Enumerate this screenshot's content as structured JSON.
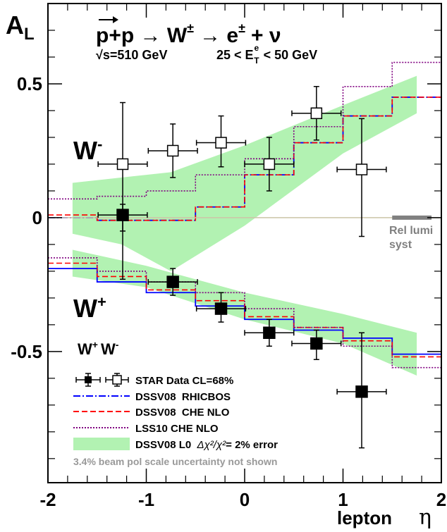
{
  "chart_data": {
    "type": "scatter",
    "ylabel": "A_L",
    "xlabel": "lepton η",
    "ylabel_main": "A",
    "ylabel_sub": "L",
    "xlabel_text": "lepton",
    "xlabel_symbol": "η",
    "title_reaction": "p+p → W± → e± + ν",
    "title_p": "p",
    "title_rest": "+p → W",
    "title_pm": "±",
    "title_arrow2": "→ e",
    "title_pm2": "±",
    "title_nu": "+ ν",
    "subtitle_sqrt": "√s=510 GeV",
    "subtitle_cut": "25 < E_T^e < 50 GeV",
    "cut_left": "25 < E",
    "cut_sup": "e",
    "cut_sub": "T",
    "cut_right": "< 50 GeV",
    "xlim": [
      -2,
      2
    ],
    "ylim": [
      -0.99,
      0.8
    ],
    "x_ticks": [
      -2,
      -1,
      0,
      1,
      2
    ],
    "x_tick_labels": [
      "-2",
      "-1",
      "0",
      "1",
      "2"
    ],
    "y_ticks": [
      -0.5,
      0,
      0.5
    ],
    "y_tick_labels": [
      "-0.5",
      "0",
      "0.5"
    ],
    "grid": false,
    "legend_position": "bottom-left",
    "annotations": {
      "w_minus": "W-",
      "w_minus_base": "W",
      "w_minus_sup": "-",
      "w_plus": "W+",
      "w_plus_base": "W",
      "w_plus_sup": "+",
      "legend_header": "W+ W-",
      "rel_lumi_1": "Rel lumi",
      "rel_lumi_2": "syst",
      "beam_pol_note": "3.4% beam pol scale uncertainty not shown"
    },
    "legend": [
      {
        "label": "STAR Data CL=68%",
        "kind": "markers"
      },
      {
        "label": "DSSV08  RHICBOS",
        "kind": "line",
        "color": "#0000ff",
        "dash": "dashdot"
      },
      {
        "label": "DSSV08  CHE NLO",
        "kind": "line",
        "color": "#ff0000",
        "dash": "dashed"
      },
      {
        "label": "LSS10 CHE NLO",
        "kind": "line",
        "color": "#800080",
        "dash": "dotted"
      },
      {
        "label": "DSSV08 L0  Δχ²/χ²= 2% error",
        "kind": "band",
        "color": "#b2f2b2"
      }
    ],
    "legend_band_prefix": "DSSV08 L0  ",
    "legend_band_suffix": "= 2% error",
    "legend_band_chi": "Δχ²/χ²",
    "series": [
      {
        "name": "STAR Data W+",
        "marker": "filled-square",
        "points": [
          {
            "x": -1.24,
            "y": 0.01,
            "xerr": 0.25,
            "ylo": -0.05,
            "yhi": 0.05
          },
          {
            "x": -0.73,
            "y": -0.24,
            "xerr": 0.25,
            "ylo": -0.29,
            "yhi": -0.19
          },
          {
            "x": -0.24,
            "y": -0.34,
            "xerr": 0.25,
            "ylo": -0.39,
            "yhi": -0.28
          },
          {
            "x": 0.25,
            "y": -0.43,
            "xerr": 0.25,
            "ylo": -0.48,
            "yhi": -0.38
          },
          {
            "x": 0.73,
            "y": -0.47,
            "xerr": 0.25,
            "ylo": -0.53,
            "yhi": -0.42
          },
          {
            "x": 1.19,
            "y": -0.65,
            "xerr": 0.25,
            "ylo": -0.86,
            "yhi": -0.43
          }
        ]
      },
      {
        "name": "STAR Data W-",
        "marker": "open-square",
        "points": [
          {
            "x": -1.24,
            "y": 0.2,
            "xerr": 0.25,
            "ylo": -0.23,
            "yhi": 0.43
          },
          {
            "x": -0.73,
            "y": 0.25,
            "xerr": 0.25,
            "ylo": 0.15,
            "yhi": 0.35
          },
          {
            "x": -0.24,
            "y": 0.28,
            "xerr": 0.25,
            "ylo": 0.19,
            "yhi": 0.38
          },
          {
            "x": 0.25,
            "y": 0.2,
            "xerr": 0.25,
            "ylo": 0.1,
            "yhi": 0.3
          },
          {
            "x": 0.73,
            "y": 0.39,
            "xerr": 0.25,
            "ylo": 0.29,
            "yhi": 0.49
          },
          {
            "x": 1.19,
            "y": 0.18,
            "xerr": 0.25,
            "ylo": -0.07,
            "yhi": 0.37
          }
        ]
      },
      {
        "name": "DSSV08  RHICBOS",
        "style": "line",
        "color": "#0000ff",
        "curves": [
          {
            "edges": [
              -2,
              -1.5,
              -1.0,
              -0.5,
              0,
              0.5,
              1.0,
              1.5,
              2.0
            ],
            "values": [
              -0.19,
              -0.24,
              -0.28,
              -0.33,
              -0.38,
              -0.42,
              -0.45,
              -0.51
            ]
          },
          {
            "edges": [
              -2,
              -1.5,
              -1.0,
              -0.5,
              0,
              0.5,
              1.0,
              1.5,
              2.0
            ],
            "values": [
              0.0,
              -0.01,
              -0.01,
              0.04,
              0.16,
              0.28,
              0.38,
              0.45
            ]
          }
        ]
      },
      {
        "name": "DSSV08  CHE NLO",
        "style": "line",
        "color": "#ff0000",
        "curves": [
          {
            "edges": [
              -2,
              -1.5,
              -1.0,
              -0.5,
              0,
              0.5,
              1.0,
              1.5,
              2.0
            ],
            "values": [
              -0.17,
              -0.22,
              -0.27,
              -0.31,
              -0.37,
              -0.41,
              -0.46,
              -0.52
            ]
          },
          {
            "edges": [
              -2,
              -1.5,
              -1.0,
              -0.5,
              0,
              0.5,
              1.0,
              1.5,
              2.0
            ],
            "values": [
              0.01,
              -0.01,
              -0.01,
              0.04,
              0.16,
              0.28,
              0.38,
              0.45
            ]
          }
        ]
      },
      {
        "name": "LSS10 CHE NLO",
        "style": "line",
        "color": "#800080",
        "curves": [
          {
            "edges": [
              -2,
              -1.5,
              -1.0,
              -0.5,
              0,
              0.5,
              1.0,
              1.5,
              2.0
            ],
            "values": [
              -0.15,
              -0.2,
              -0.24,
              -0.28,
              -0.34,
              -0.41,
              -0.48,
              -0.56
            ]
          },
          {
            "edges": [
              -2,
              -1.5,
              -1.0,
              -0.5,
              0,
              0.5,
              1.0,
              1.5,
              2.0
            ],
            "values": [
              0.07,
              0.08,
              0.1,
              0.16,
              0.22,
              0.34,
              0.49,
              0.58
            ]
          }
        ]
      },
      {
        "name": "DSSV08 L0 Δχ²/χ²= 2% error",
        "style": "band",
        "color": "#b2f2b2",
        "bands": [
          {
            "x": [
              -1.75,
              -1.0,
              0.0,
              1.0,
              1.75
            ],
            "lower": [
              -0.22,
              -0.26,
              -0.38,
              -0.47,
              -0.59
            ],
            "upper": [
              -0.12,
              -0.18,
              -0.28,
              -0.36,
              -0.43
            ]
          },
          {
            "x": [
              -1.75,
              -1.25,
              -0.75,
              0.0,
              1.0,
              1.75
            ],
            "lower": [
              -0.06,
              -0.1,
              -0.2,
              -0.03,
              0.24,
              0.39
            ],
            "upper": [
              0.13,
              0.15,
              0.17,
              0.27,
              0.42,
              0.53
            ]
          }
        ]
      }
    ],
    "rel_lumi_syst": {
      "x": [
        1.5,
        1.9
      ],
      "y": 0.0,
      "color": "#808080"
    },
    "zero_line_color": "#ccc4a6"
  }
}
